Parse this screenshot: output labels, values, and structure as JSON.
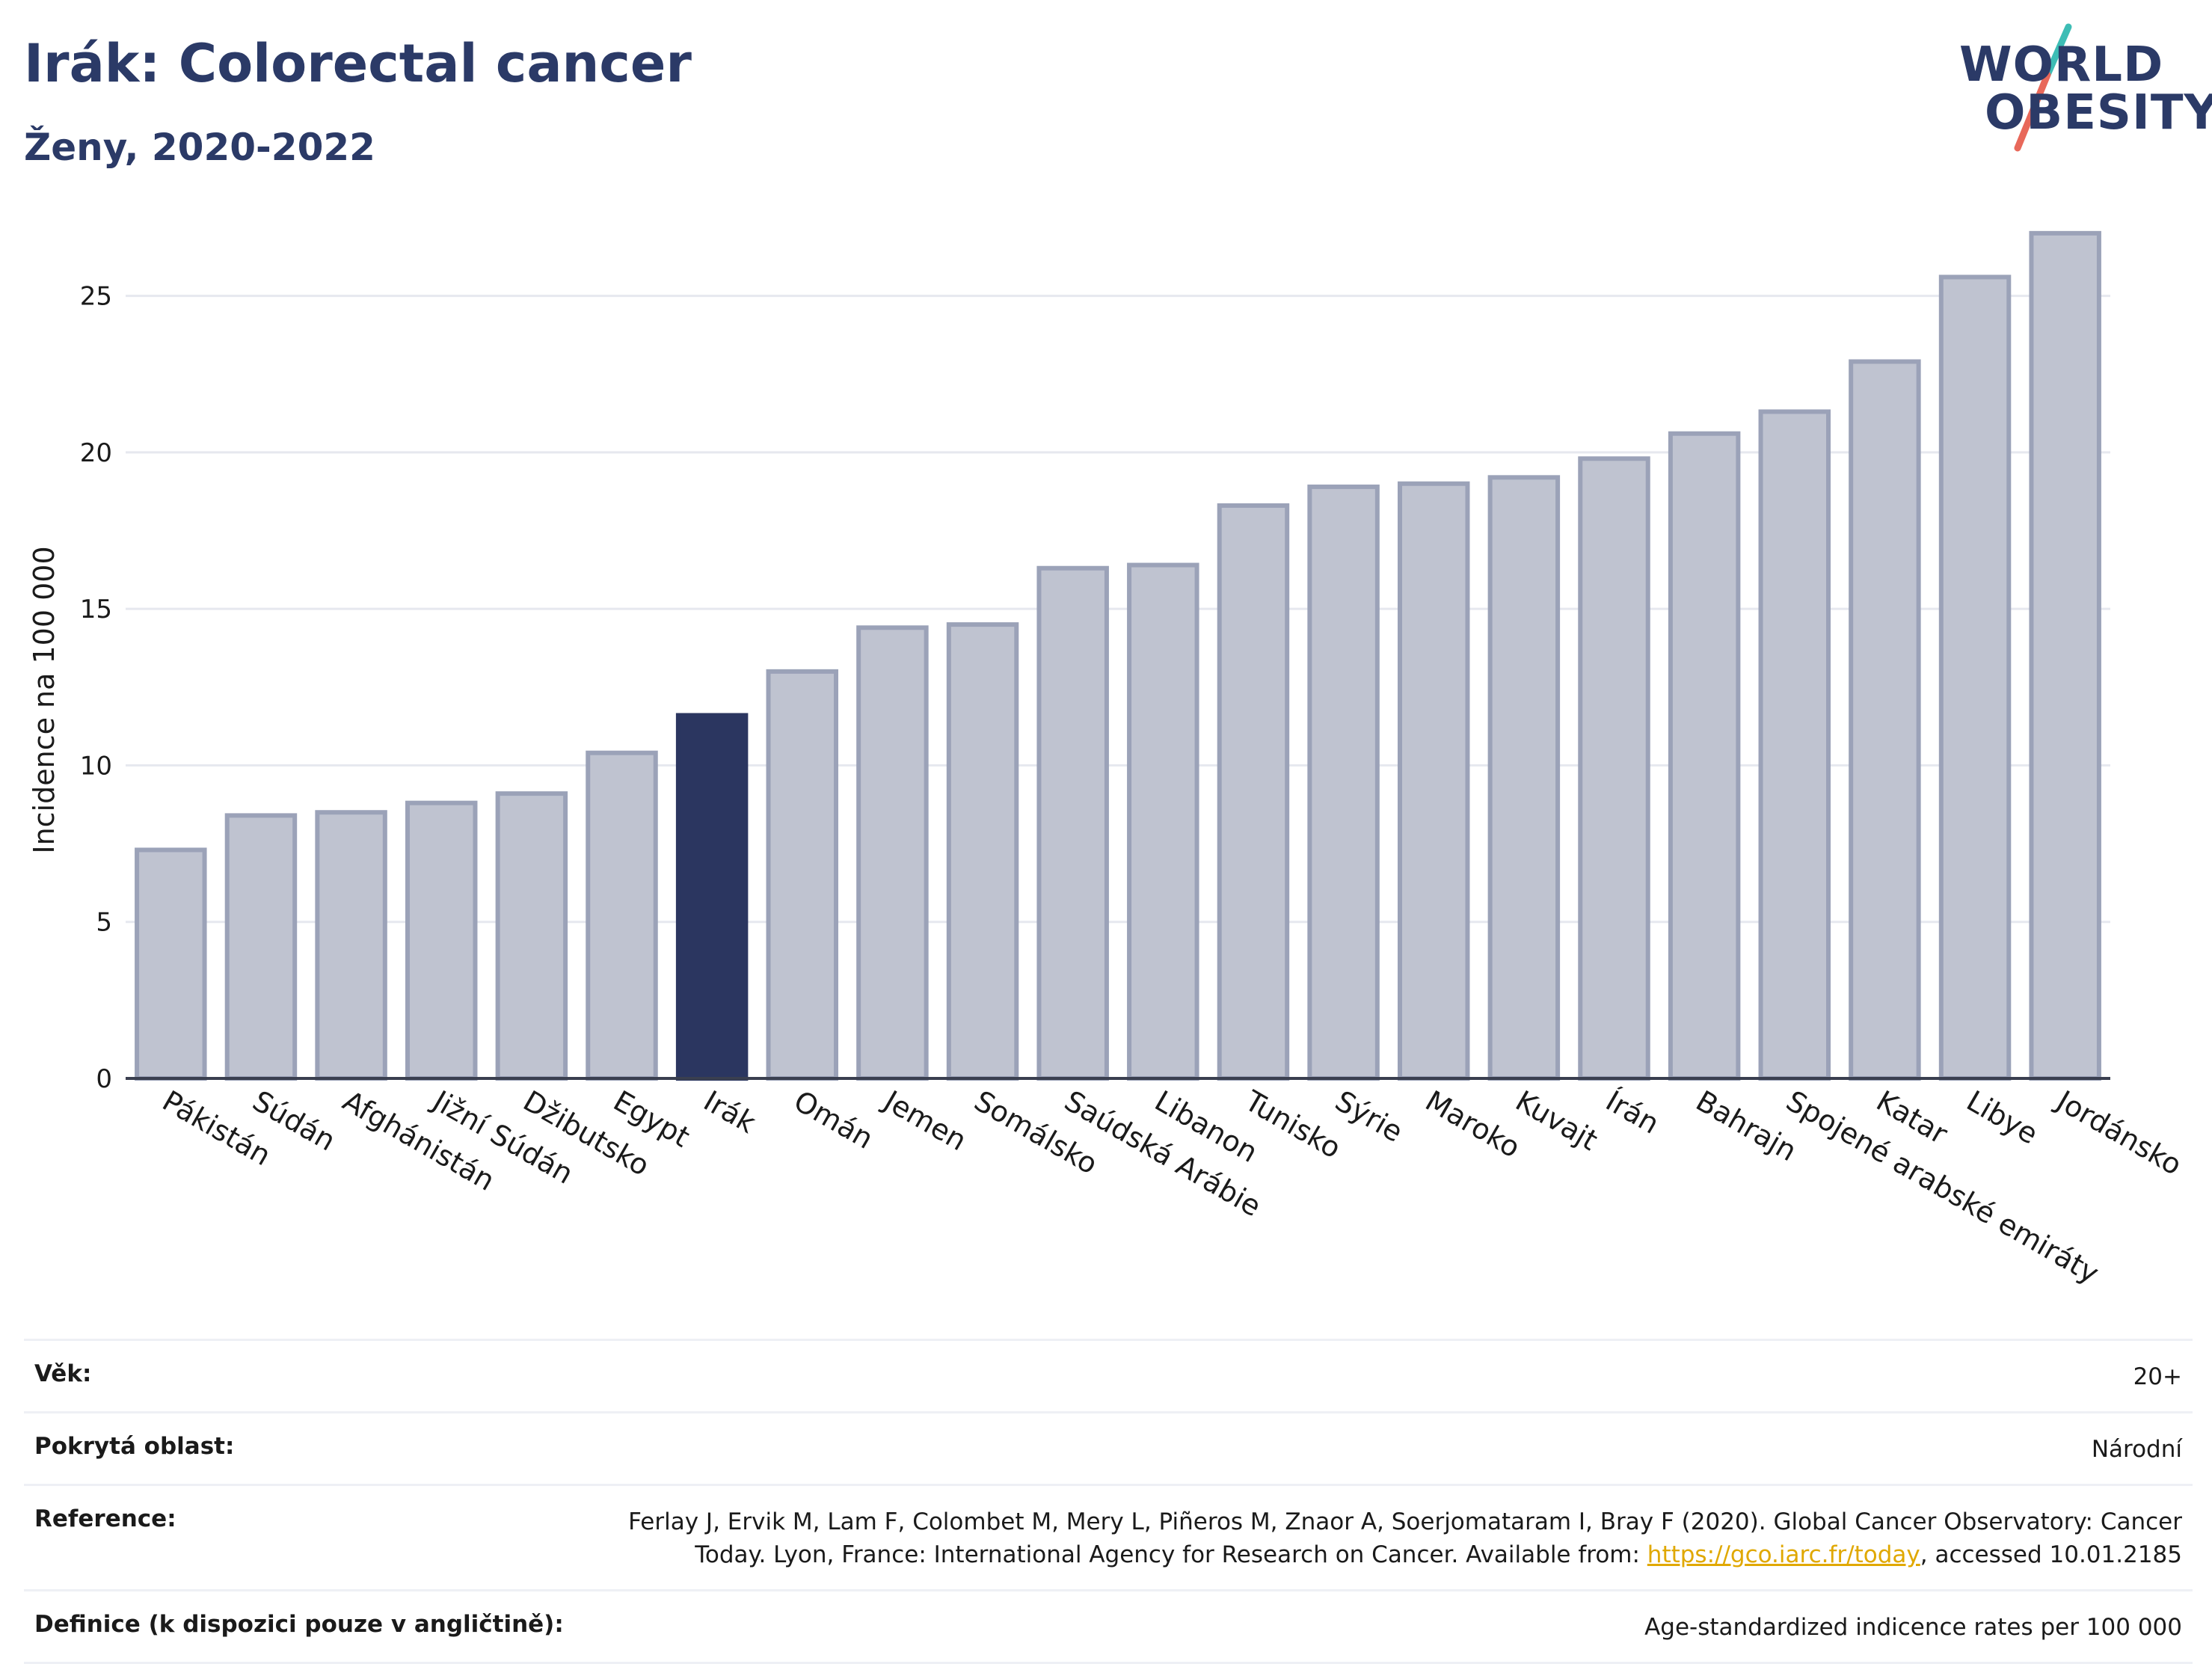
{
  "header": {
    "title": "Irák: Colorectal cancer",
    "subtitle": "Ženy, 2020-2022"
  },
  "logo": {
    "line1": "WORLD",
    "line2": "OBESITY",
    "text_color": "#2b3a67",
    "accent_teal": "#3dbdb5",
    "accent_coral": "#e8685a"
  },
  "colors": {
    "highlight_bar": "#2b3660",
    "other_bar_fill": "#bfc3d0",
    "other_bar_stroke": "#9ba2b8",
    "grid": "#e6e8ef"
  },
  "chart_data": {
    "type": "bar",
    "ylabel": "Incidence na 100 000",
    "xlabel": "",
    "ylim": [
      0,
      28
    ],
    "yticks": [
      0,
      5,
      10,
      15,
      20,
      25
    ],
    "grid": true,
    "highlight": "Irák",
    "categories": [
      "Pákistán",
      "Súdán",
      "Afghánistán",
      "Jižní Súdán",
      "Džibutsko",
      "Egypt",
      "Irák",
      "Omán",
      "Jemen",
      "Somálsko",
      "Saúdská Arábie",
      "Libanon",
      "Tunisko",
      "Sýrie",
      "Maroko",
      "Kuvajt",
      "Írán",
      "Bahrajn",
      "Spojené arabské emiráty",
      "Katar",
      "Libye",
      "Jordánsko"
    ],
    "values": [
      7.3,
      8.4,
      8.5,
      8.8,
      9.1,
      10.4,
      11.6,
      13.0,
      14.4,
      14.5,
      16.3,
      16.4,
      18.3,
      18.9,
      19.0,
      19.2,
      19.8,
      20.6,
      21.3,
      22.9,
      25.6,
      27.0
    ]
  },
  "info": {
    "rows": [
      {
        "label": "Věk:",
        "value": "20+"
      },
      {
        "label": "Pokrytá oblast:",
        "value": "Národní"
      },
      {
        "label": "Reference:",
        "value_line1": "Ferlay J, Ervik M, Lam F, Colombet M, Mery L, Piñeros M, Znaor A, Soerjomataram I, Bray F (2020). Global Cancer Observatory: Cancer",
        "value_line2_pre": "Today. Lyon, France: International Agency for Research on Cancer. Available from: ",
        "link": "https://gco.iarc.fr/today",
        "value_line2_post": ", accessed 10.01.2185"
      },
      {
        "label": "Definice (k dispozici pouze v angličtině):",
        "value": "Age-standardized indicence rates per 100 000"
      }
    ]
  }
}
